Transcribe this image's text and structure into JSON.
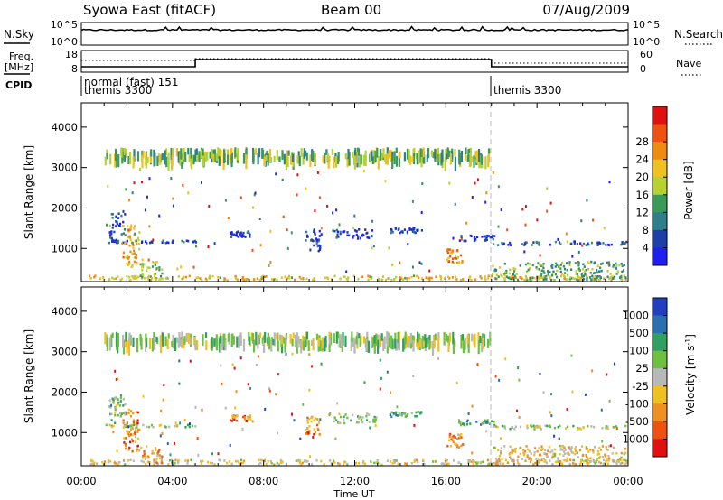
{
  "header": {
    "station": "Syowa East (fitACF)",
    "beam": "Beam 00",
    "date": "07/Aug/2009"
  },
  "strip_labels": {
    "nsky": "N.Sky",
    "nsearch": "N.Search",
    "freq_line1": "Freq.",
    "freq_line2": "[MHz]",
    "nave": "Nave",
    "cpid": "CPID",
    "nsky_ticks": [
      "10^5",
      "10^0"
    ],
    "nsearch_ticks": [
      "10^5",
      "10^0"
    ],
    "freq_ticks": [
      "18",
      "8"
    ],
    "nave_ticks": [
      "60",
      "0"
    ]
  },
  "cpid_segments": [
    {
      "start_hour": 0,
      "line1": "normal (fast) 151",
      "line2": "themis 3300"
    },
    {
      "start_hour": 18,
      "line1": "themis 3300",
      "line2": ""
    }
  ],
  "chart_data": [
    {
      "type": "heatmap",
      "title": "",
      "xlabel": "Time UT",
      "ylabel": "Slant Range [km]",
      "xlim": [
        0,
        24
      ],
      "ylim": [
        180,
        4600
      ],
      "x_ticks": [
        "00:00",
        "04:00",
        "08:00",
        "12:00",
        "16:00",
        "20:00",
        "00:00"
      ],
      "y_ticks": [
        1000,
        2000,
        3000,
        4000
      ],
      "colorbar": {
        "label": "Power [dB]",
        "ticks": [
          "4",
          "8",
          "12",
          "16",
          "20",
          "24",
          "28"
        ],
        "colors": [
          "#1f1ff0",
          "#1c3fa8",
          "#2e7f8a",
          "#3a9a5a",
          "#b8d030",
          "#f0c020",
          "#f08a10",
          "#f05010",
          "#e01010"
        ]
      },
      "regions": [
        {
          "t": [
            0.3,
            24
          ],
          "r": [
            180,
            350
          ],
          "level": 0.6
        },
        {
          "t": [
            1.2,
            2.0
          ],
          "r": [
            1100,
            1900
          ],
          "level": 0.15
        },
        {
          "t": [
            1.8,
            2.6
          ],
          "r": [
            500,
            1600
          ],
          "level": 0.65
        },
        {
          "t": [
            2.5,
            3.6
          ],
          "r": [
            180,
            700
          ],
          "level": 0.5
        },
        {
          "t": [
            1.0,
            5.2
          ],
          "r": [
            1100,
            1220
          ],
          "level": 0.2
        },
        {
          "t": [
            6.5,
            7.5
          ],
          "r": [
            1250,
            1450
          ],
          "level": 0.1
        },
        {
          "t": [
            9.8,
            10.6
          ],
          "r": [
            900,
            1500
          ],
          "level": 0.15
        },
        {
          "t": [
            11.0,
            13.0
          ],
          "r": [
            1200,
            1500
          ],
          "level": 0.1
        },
        {
          "t": [
            13.5,
            15.0
          ],
          "r": [
            1350,
            1550
          ],
          "level": 0.12
        },
        {
          "t": [
            16.0,
            16.8
          ],
          "r": [
            600,
            1000
          ],
          "level": 0.7
        },
        {
          "t": [
            16.5,
            18.2
          ],
          "r": [
            1150,
            1350
          ],
          "level": 0.12
        },
        {
          "t": [
            18.0,
            24.0
          ],
          "r": [
            1050,
            1200
          ],
          "level": 0.18
        },
        {
          "t": [
            18.0,
            24.0
          ],
          "r": [
            180,
            700
          ],
          "level": 0.4
        },
        {
          "t": [
            1.0,
            18.0
          ],
          "r": [
            3200,
            3500
          ],
          "level": 0.45
        }
      ]
    },
    {
      "type": "heatmap",
      "title": "",
      "xlabel": "Time UT",
      "ylabel": "Slant Range [km]",
      "xlim": [
        0,
        24
      ],
      "ylim": [
        180,
        4600
      ],
      "x_ticks": [
        "00:00",
        "04:00",
        "08:00",
        "12:00",
        "16:00",
        "20:00",
        "00:00"
      ],
      "y_ticks": [
        1000,
        2000,
        3000,
        4000
      ],
      "colorbar": {
        "label": "Velocity [m s-1]",
        "ticks": [
          "1000",
          "500",
          "100",
          "25",
          "-25",
          "-100",
          "-500",
          "-1000"
        ],
        "colors": [
          "#2040c0",
          "#2a70b0",
          "#30a060",
          "#70c040",
          "#b8b8b8",
          "#f0c020",
          "#f09020",
          "#f05010",
          "#e01010"
        ]
      },
      "regions": [
        {
          "t": [
            0.3,
            24
          ],
          "r": [
            180,
            350
          ],
          "level": 0.55
        },
        {
          "t": [
            1.2,
            2.0
          ],
          "r": [
            1100,
            1900
          ],
          "level": 0.4
        },
        {
          "t": [
            1.8,
            2.6
          ],
          "r": [
            500,
            1600
          ],
          "level": 0.75
        },
        {
          "t": [
            2.5,
            3.6
          ],
          "r": [
            180,
            700
          ],
          "level": 0.65
        },
        {
          "t": [
            1.0,
            5.2
          ],
          "r": [
            1100,
            1220
          ],
          "level": 0.45
        },
        {
          "t": [
            6.5,
            7.5
          ],
          "r": [
            1250,
            1450
          ],
          "level": 0.75
        },
        {
          "t": [
            9.8,
            10.6
          ],
          "r": [
            900,
            1500
          ],
          "level": 0.75
        },
        {
          "t": [
            11.0,
            13.0
          ],
          "r": [
            1200,
            1500
          ],
          "level": 0.4
        },
        {
          "t": [
            13.5,
            15.0
          ],
          "r": [
            1350,
            1550
          ],
          "level": 0.35
        },
        {
          "t": [
            16.0,
            16.8
          ],
          "r": [
            600,
            1000
          ],
          "level": 0.7
        },
        {
          "t": [
            16.5,
            18.2
          ],
          "r": [
            1150,
            1350
          ],
          "level": 0.3
        },
        {
          "t": [
            18.0,
            24.0
          ],
          "r": [
            1050,
            1200
          ],
          "level": 0.48
        },
        {
          "t": [
            18.0,
            24.0
          ],
          "r": [
            180,
            700
          ],
          "level": 0.6
        },
        {
          "t": [
            1.0,
            18.0
          ],
          "r": [
            3200,
            3500
          ],
          "level": 0.45
        }
      ]
    }
  ]
}
